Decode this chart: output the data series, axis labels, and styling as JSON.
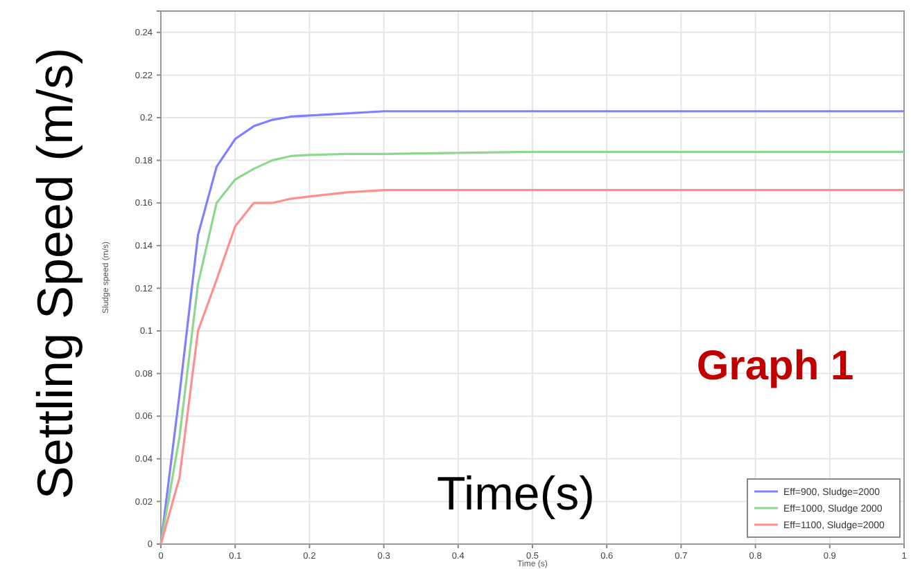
{
  "chart_data": {
    "type": "line",
    "xlabel": "Time (s)",
    "ylabel": "Sludge speed (m/s)",
    "annotations": [
      "Settling Speed  (m/s)",
      "Time(s)",
      "Graph 1"
    ],
    "x": [
      0,
      0.025,
      0.05,
      0.075,
      0.1,
      0.125,
      0.15,
      0.175,
      0.2,
      0.25,
      0.3,
      0.4,
      0.5,
      0.6,
      0.7,
      0.8,
      0.9,
      1
    ],
    "series": [
      {
        "name": "Eff=900, Sludge=2000",
        "color": "#7f7fff",
        "values": [
          0,
          0.07,
          0.145,
          0.177,
          0.19,
          0.196,
          0.199,
          0.2005,
          0.201,
          0.202,
          0.203,
          0.203,
          0.203,
          0.203,
          0.203,
          0.203,
          0.203,
          0.203
        ]
      },
      {
        "name": "Eff=1000, Sludge 2000",
        "color": "#8fd68f",
        "values": [
          0,
          0.05,
          0.122,
          0.16,
          0.171,
          0.176,
          0.18,
          0.182,
          0.1825,
          0.183,
          0.183,
          0.1835,
          0.184,
          0.184,
          0.184,
          0.184,
          0.184,
          0.184
        ]
      },
      {
        "name": "Eff=1100, Sludge=2000",
        "color": "#ff8f8f",
        "values": [
          0,
          0.031,
          0.1,
          0.124,
          0.149,
          0.16,
          0.16,
          0.162,
          0.163,
          0.165,
          0.166,
          0.166,
          0.166,
          0.166,
          0.166,
          0.166,
          0.166,
          0.166
        ]
      }
    ],
    "xlim": [
      0,
      1
    ],
    "xticks": [
      0,
      0.1,
      0.2,
      0.3,
      0.4,
      0.5,
      0.6,
      0.7,
      0.8,
      0.9,
      1
    ],
    "ylim": [
      0,
      0.25
    ],
    "yticks": [
      0,
      0.02,
      0.04,
      0.06,
      0.08,
      0.1,
      0.12,
      0.14,
      0.16,
      0.18,
      0.2,
      0.22,
      0.24
    ],
    "grid": true,
    "legend": "bottom right",
    "marker": "none",
    "line_style": "solid"
  }
}
